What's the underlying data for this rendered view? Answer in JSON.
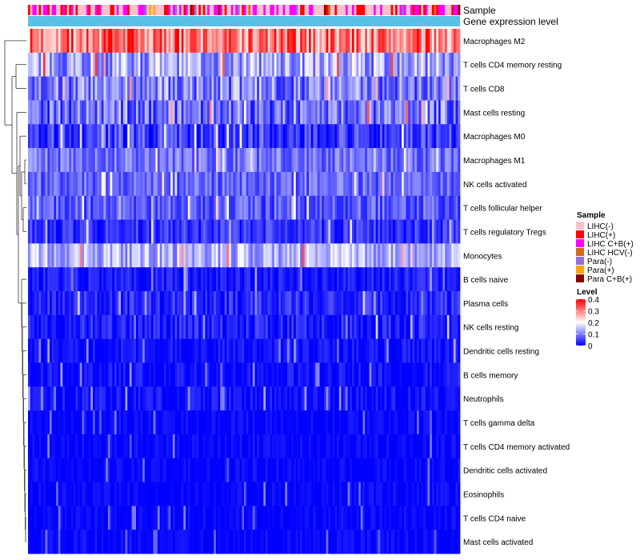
{
  "chart_data": {
    "type": "heatmap",
    "title": "",
    "annotation_tracks": [
      {
        "label": "Sample",
        "kind": "categorical"
      },
      {
        "label": "Gene expression level",
        "kind": "continuous",
        "color": "#5BC0E6"
      }
    ],
    "rows": [
      {
        "label": "Macrophages M2",
        "mean": 0.3,
        "spread": 0.1
      },
      {
        "label": "T cells CD4 memory resting",
        "mean": 0.13,
        "spread": 0.08
      },
      {
        "label": "T cells CD8",
        "mean": 0.1,
        "spread": 0.08
      },
      {
        "label": "Mast cells resting",
        "mean": 0.09,
        "spread": 0.08
      },
      {
        "label": "Macrophages M0",
        "mean": 0.05,
        "spread": 0.06
      },
      {
        "label": "Macrophages M1",
        "mean": 0.09,
        "spread": 0.05
      },
      {
        "label": "NK cells activated",
        "mean": 0.08,
        "spread": 0.05
      },
      {
        "label": "T cells follicular helper",
        "mean": 0.07,
        "spread": 0.05
      },
      {
        "label": "T cells regulatory  Tregs",
        "mean": 0.04,
        "spread": 0.04
      },
      {
        "label": "Monocytes",
        "mean": 0.14,
        "spread": 0.06
      },
      {
        "label": "B cells naive",
        "mean": 0.02,
        "spread": 0.03
      },
      {
        "label": "Plasma cells",
        "mean": 0.03,
        "spread": 0.04
      },
      {
        "label": "NK cells resting",
        "mean": 0.02,
        "spread": 0.04
      },
      {
        "label": "Dendritic cells resting",
        "mean": 0.01,
        "spread": 0.03
      },
      {
        "label": "B cells memory",
        "mean": 0.01,
        "spread": 0.03
      },
      {
        "label": "Neutrophils",
        "mean": 0.01,
        "spread": 0.03
      },
      {
        "label": "T cells gamma delta",
        "mean": 0.003,
        "spread": 0.02
      },
      {
        "label": "T cells CD4 memory activated",
        "mean": 0.003,
        "spread": 0.02
      },
      {
        "label": "Dendritic cells activated",
        "mean": 0.003,
        "spread": 0.02
      },
      {
        "label": "Eosinophils",
        "mean": 0.003,
        "spread": 0.02
      },
      {
        "label": "T cells CD4 naive",
        "mean": 0.003,
        "spread": 0.02
      },
      {
        "label": "Mast cells activated",
        "mean": 0.003,
        "spread": 0.02
      }
    ],
    "n_samples": 200,
    "value_range": [
      0,
      0.4
    ],
    "legends": {
      "sample": {
        "title": "Sample",
        "entries": [
          {
            "label": "LIHC(-)",
            "color": "#FFC0CB"
          },
          {
            "label": "LIHC(+)",
            "color": "#FF0000"
          },
          {
            "label": "LIHC C+B(+)",
            "color": "#FF00FF"
          },
          {
            "label": "LIHC HCV(-)",
            "color": "#D2691E"
          },
          {
            "label": "Para(-)",
            "color": "#9370DB"
          },
          {
            "label": "Para(+)",
            "color": "#FFA500"
          },
          {
            "label": "Para C+B(+)",
            "color": "#8B0000"
          }
        ]
      },
      "level": {
        "title": "Level",
        "ticks": [
          {
            "value": 0.4,
            "label": "0.4"
          },
          {
            "value": 0.3,
            "label": "0.3"
          },
          {
            "value": 0.2,
            "label": "0.2"
          },
          {
            "value": 0.1,
            "label": "0.1"
          },
          {
            "value": 0,
            "label": "0"
          }
        ],
        "colors": {
          "low": "#0000FF",
          "mid": "#FFFFFF",
          "high": "#FF0000"
        }
      }
    }
  }
}
